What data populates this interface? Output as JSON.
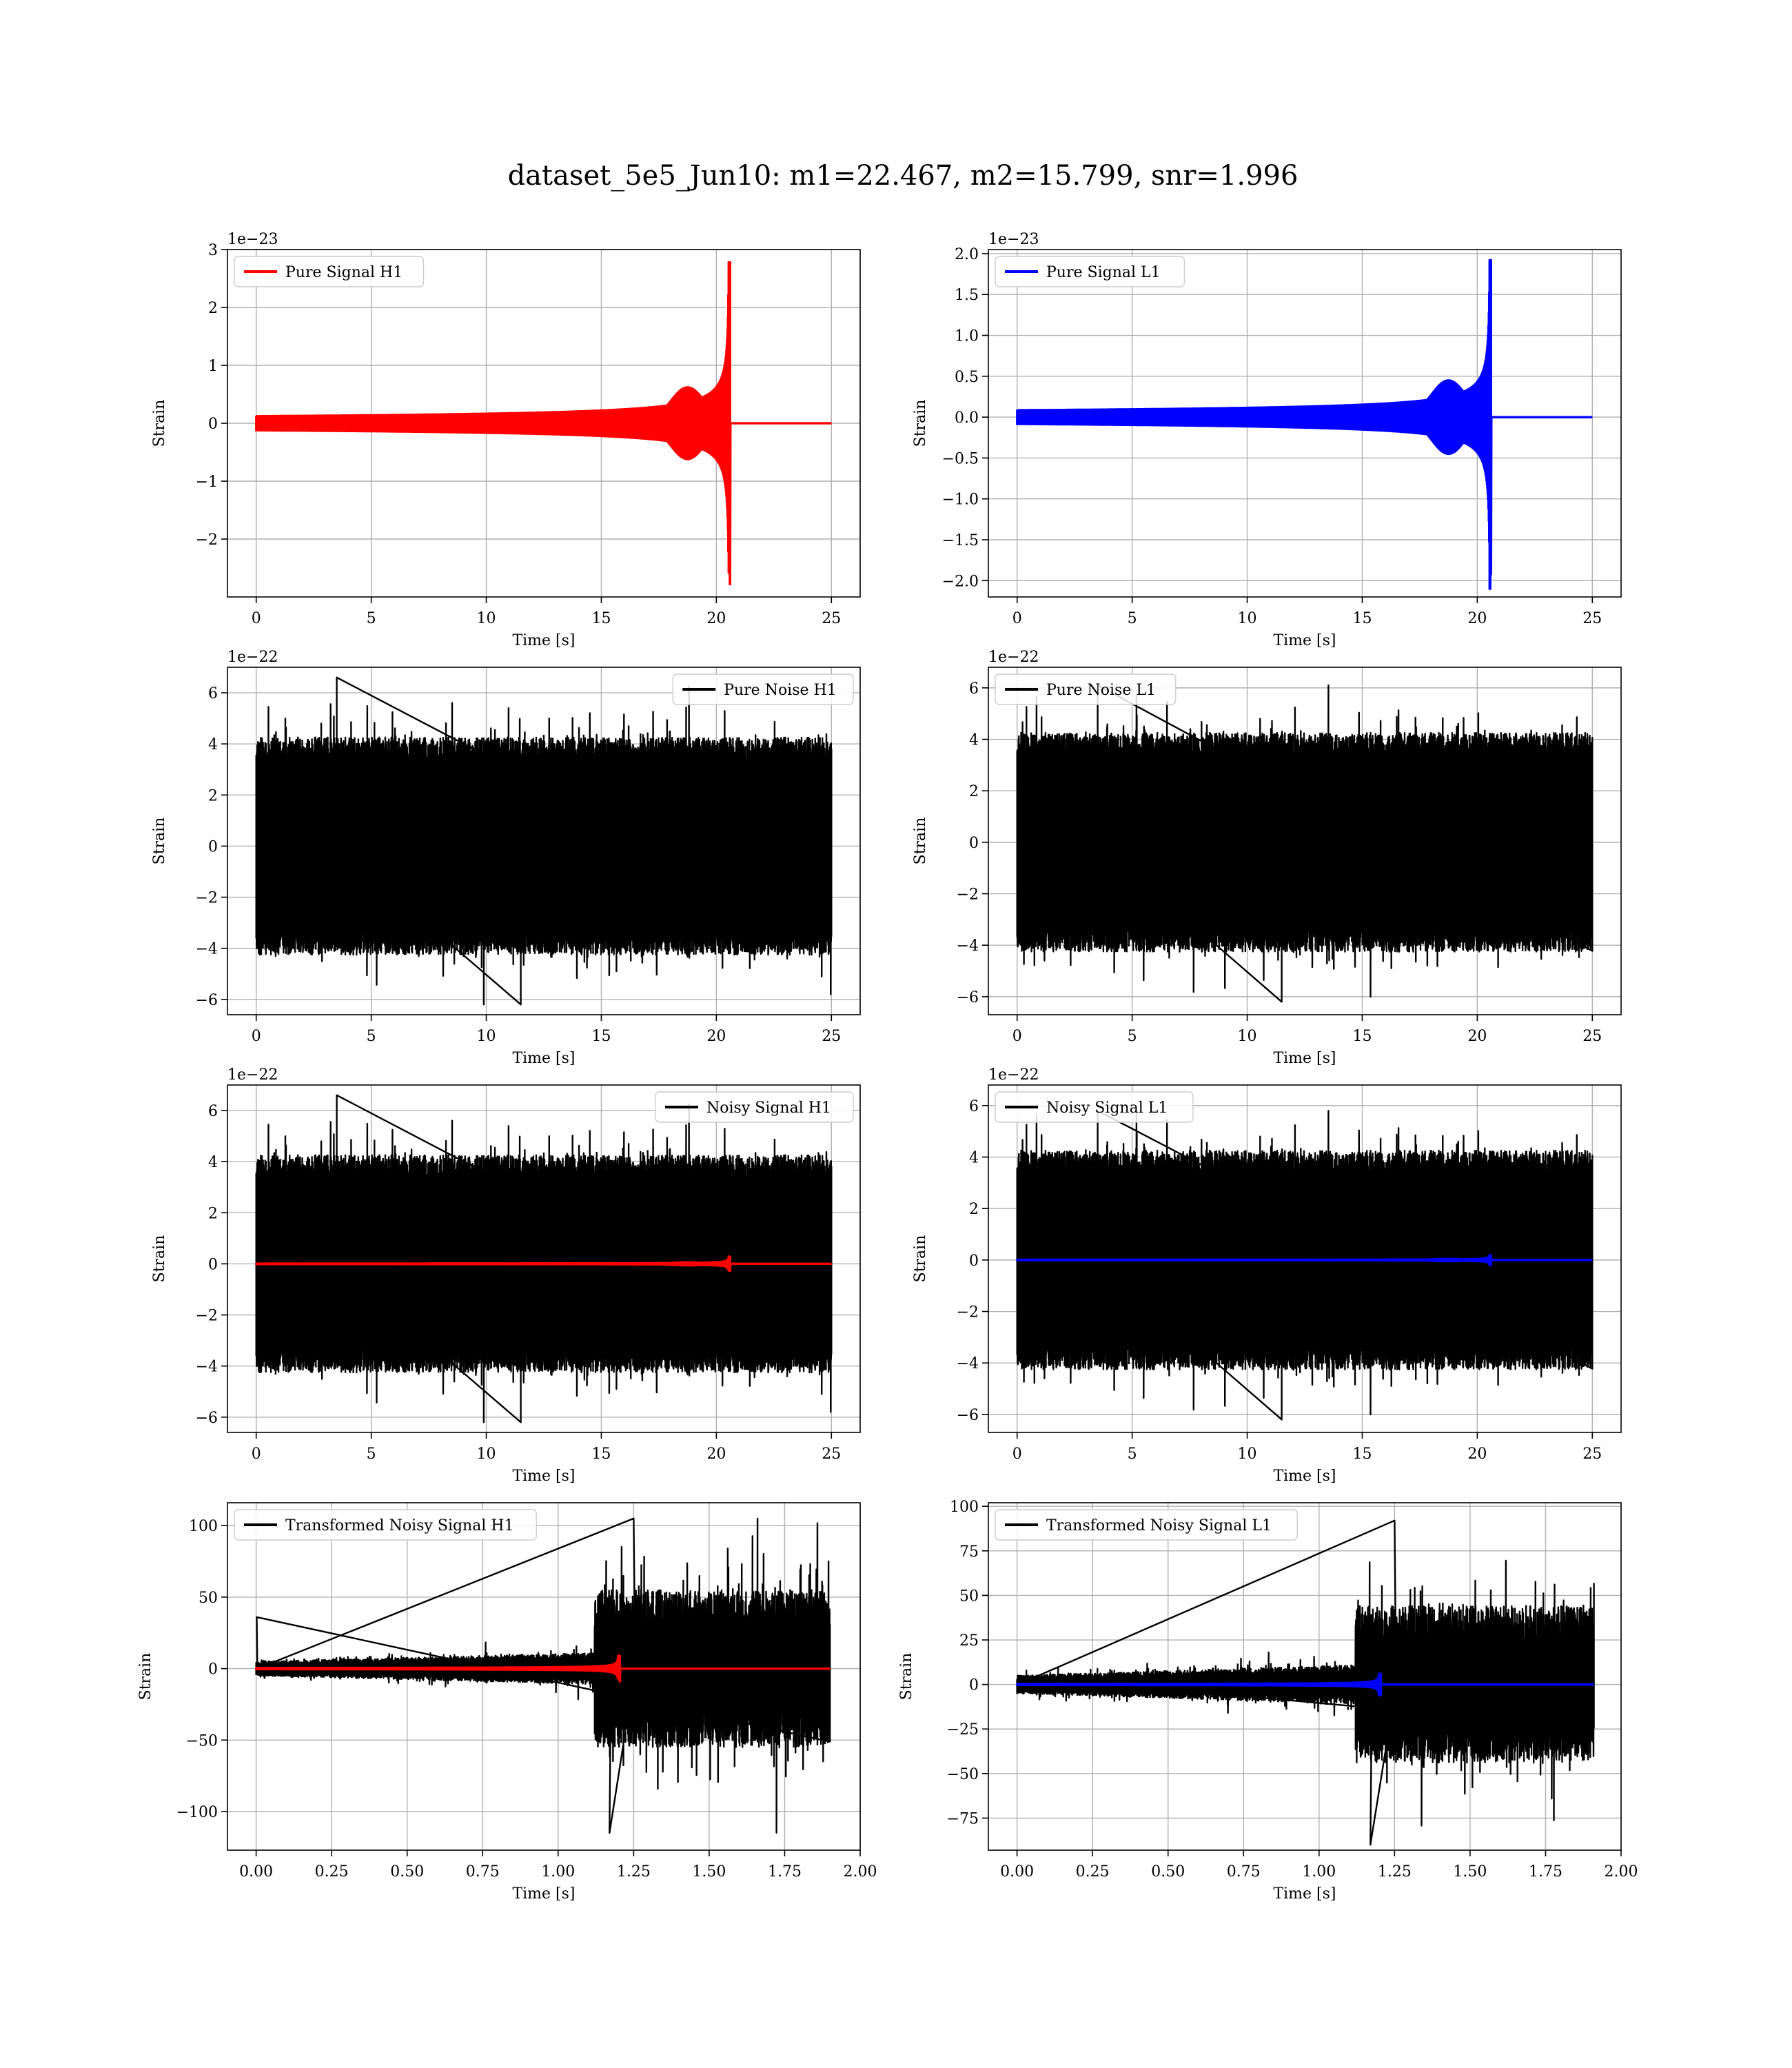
{
  "figure": {
    "title": "dataset_5e5_Jun10: m1=22.467, m2=15.799, snr=1.996"
  },
  "colors": {
    "h1_signal": "#ff0000",
    "l1_signal": "#0000ff",
    "noise": "#000000",
    "grid": "#b0b0b0"
  },
  "chart_data": [
    {
      "id": "pure-signal-h1",
      "type": "line",
      "title": "",
      "xlabel": "Time [s]",
      "ylabel": "Strain",
      "offset_text": "1e−23",
      "xlim": [
        -1.25,
        26.25
      ],
      "ylim": [
        -3.0,
        3.0
      ],
      "xticks": [
        0,
        5,
        10,
        15,
        20,
        25
      ],
      "xtick_labels": [
        "0",
        "5",
        "10",
        "15",
        "20",
        "25"
      ],
      "yticks": [
        -2,
        -1,
        0,
        1,
        2,
        3
      ],
      "ytick_labels": [
        "−2",
        "−1",
        "0",
        "1",
        "2",
        "3"
      ],
      "grid": true,
      "legend_position": "upper-left",
      "series": [
        {
          "name": "Pure Signal H1",
          "color": "#ff0000",
          "kind": "chirp",
          "t_start": 0,
          "t_end": 25,
          "merger_t": 20.55,
          "amp_peak": 2.78,
          "amp_min": -2.58,
          "amp_shoulder": 0.62
        }
      ]
    },
    {
      "id": "pure-signal-l1",
      "type": "line",
      "title": "",
      "xlabel": "Time [s]",
      "ylabel": "Strain",
      "offset_text": "1e−23",
      "xlim": [
        -1.25,
        26.25
      ],
      "ylim": [
        -2.2,
        2.05
      ],
      "xticks": [
        0,
        5,
        10,
        15,
        20,
        25
      ],
      "xtick_labels": [
        "0",
        "5",
        "10",
        "15",
        "20",
        "25"
      ],
      "yticks": [
        -2.0,
        -1.5,
        -1.0,
        -0.5,
        0.0,
        0.5,
        1.0,
        1.5,
        2.0
      ],
      "ytick_labels": [
        "−2.0",
        "−1.5",
        "−1.0",
        "−0.5",
        "0.0",
        "0.5",
        "1.0",
        "1.5",
        "2.0"
      ],
      "grid": true,
      "legend_position": "upper-left",
      "series": [
        {
          "name": "Pure Signal L1",
          "color": "#0000ff",
          "kind": "chirp",
          "t_start": 0,
          "t_end": 25,
          "merger_t": 20.55,
          "amp_peak": 1.92,
          "amp_min": -2.1,
          "amp_shoulder": 0.45
        }
      ]
    },
    {
      "id": "pure-noise-h1",
      "type": "line",
      "title": "",
      "xlabel": "Time [s]",
      "ylabel": "Strain",
      "offset_text": "1e−22",
      "xlim": [
        -1.25,
        26.25
      ],
      "ylim": [
        -6.6,
        7.0
      ],
      "xticks": [
        0,
        5,
        10,
        15,
        20,
        25
      ],
      "xtick_labels": [
        "0",
        "5",
        "10",
        "15",
        "20",
        "25"
      ],
      "yticks": [
        -6,
        -4,
        -2,
        0,
        2,
        4,
        6
      ],
      "ytick_labels": [
        "−6",
        "−4",
        "−2",
        "0",
        "2",
        "4",
        "6"
      ],
      "grid": true,
      "legend_position": "upper-right",
      "series": [
        {
          "name": "Pure Noise H1",
          "color": "#000000",
          "kind": "noise",
          "t_start": 0,
          "t_end": 25,
          "max": 6.6,
          "min": -6.2,
          "band": 3.8,
          "seed": 11
        }
      ]
    },
    {
      "id": "pure-noise-l1",
      "type": "line",
      "title": "",
      "xlabel": "Time [s]",
      "ylabel": "Strain",
      "offset_text": "1e−22",
      "xlim": [
        -1.25,
        26.25
      ],
      "ylim": [
        -6.7,
        6.8
      ],
      "xticks": [
        0,
        5,
        10,
        15,
        20,
        25
      ],
      "xtick_labels": [
        "0",
        "5",
        "10",
        "15",
        "20",
        "25"
      ],
      "yticks": [
        -6,
        -4,
        -2,
        0,
        2,
        4,
        6
      ],
      "ytick_labels": [
        "−6",
        "−4",
        "−2",
        "0",
        "2",
        "4",
        "6"
      ],
      "grid": true,
      "legend_position": "upper-left",
      "series": [
        {
          "name": "Pure Noise L1",
          "color": "#000000",
          "kind": "noise",
          "t_start": 0,
          "t_end": 25,
          "max": 6.1,
          "min": -6.2,
          "band": 3.8,
          "seed": 23
        }
      ]
    },
    {
      "id": "noisy-signal-h1",
      "type": "line",
      "title": "",
      "xlabel": "Time [s]",
      "ylabel": "Strain",
      "offset_text": "1e−22",
      "xlim": [
        -1.25,
        26.25
      ],
      "ylim": [
        -6.6,
        7.0
      ],
      "xticks": [
        0,
        5,
        10,
        15,
        20,
        25
      ],
      "xtick_labels": [
        "0",
        "5",
        "10",
        "15",
        "20",
        "25"
      ],
      "yticks": [
        -6,
        -4,
        -2,
        0,
        2,
        4,
        6
      ],
      "ytick_labels": [
        "−6",
        "−4",
        "−2",
        "0",
        "2",
        "4",
        "6"
      ],
      "grid": true,
      "legend_position": "upper-right",
      "series": [
        {
          "name": "Noisy Signal H1",
          "color": "#000000",
          "kind": "noise",
          "t_start": 0,
          "t_end": 25,
          "max": 6.6,
          "min": -6.2,
          "band": 3.8,
          "seed": 11
        },
        {
          "name": "",
          "color": "#ff0000",
          "kind": "chirp",
          "t_start": 0,
          "t_end": 25,
          "merger_t": 20.55,
          "amp_peak": 0.28,
          "amp_min": -0.26,
          "amp_shoulder": 0.06
        }
      ]
    },
    {
      "id": "noisy-signal-l1",
      "type": "line",
      "title": "",
      "xlabel": "Time [s]",
      "ylabel": "Strain",
      "offset_text": "1e−22",
      "xlim": [
        -1.25,
        26.25
      ],
      "ylim": [
        -6.7,
        6.8
      ],
      "xticks": [
        0,
        5,
        10,
        15,
        20,
        25
      ],
      "xtick_labels": [
        "0",
        "5",
        "10",
        "15",
        "20",
        "25"
      ],
      "yticks": [
        -6,
        -4,
        -2,
        0,
        2,
        4,
        6
      ],
      "ytick_labels": [
        "−6",
        "−4",
        "−2",
        "0",
        "2",
        "4",
        "6"
      ],
      "grid": true,
      "legend_position": "upper-left",
      "series": [
        {
          "name": "Noisy Signal L1",
          "color": "#000000",
          "kind": "noise",
          "t_start": 0,
          "t_end": 25,
          "max": 5.8,
          "min": -6.2,
          "band": 3.8,
          "seed": 23
        },
        {
          "name": "",
          "color": "#0000ff",
          "kind": "chirp",
          "t_start": 0,
          "t_end": 25,
          "merger_t": 20.55,
          "amp_peak": 0.19,
          "amp_min": -0.21,
          "amp_shoulder": 0.045
        }
      ]
    },
    {
      "id": "transformed-noisy-signal-h1",
      "type": "line",
      "title": "",
      "xlabel": "Time [s]",
      "ylabel": "Strain",
      "offset_text": "",
      "xlim": [
        -0.095,
        2.0
      ],
      "ylim": [
        -127,
        116
      ],
      "xticks": [
        0,
        0.25,
        0.5,
        0.75,
        1.0,
        1.25,
        1.5,
        1.75,
        2.0
      ],
      "xtick_labels": [
        "0.00",
        "0.25",
        "0.50",
        "0.75",
        "1.00",
        "1.25",
        "1.50",
        "1.75",
        "2.00"
      ],
      "yticks": [
        -100,
        -50,
        0,
        50,
        100
      ],
      "ytick_labels": [
        "−100",
        "−50",
        "0",
        "50",
        "100"
      ],
      "grid": true,
      "legend_position": "upper-left",
      "series": [
        {
          "name": "Transformed Noisy Signal H1",
          "color": "#000000",
          "kind": "whitened",
          "t_start": 0,
          "t_end": 1.9,
          "step_t": 1.12,
          "low_band": 6,
          "high_band": 50,
          "max": 105,
          "min": -115,
          "spike_t0": 36,
          "seed": 37
        },
        {
          "name": "",
          "color": "#ff0000",
          "kind": "chirp",
          "t_start": 0,
          "t_end": 1.9,
          "merger_t": 1.2,
          "amp_peak": 9,
          "amp_min": -7,
          "amp_shoulder": 1
        }
      ]
    },
    {
      "id": "transformed-noisy-signal-l1",
      "type": "line",
      "title": "",
      "xlabel": "Time [s]",
      "ylabel": "Strain",
      "offset_text": "",
      "xlim": [
        -0.095,
        2.0
      ],
      "ylim": [
        -93,
        102
      ],
      "xticks": [
        0,
        0.25,
        0.5,
        0.75,
        1.0,
        1.25,
        1.5,
        1.75,
        2.0
      ],
      "xtick_labels": [
        "0.00",
        "0.25",
        "0.50",
        "0.75",
        "1.00",
        "1.25",
        "1.50",
        "1.75",
        "2.00"
      ],
      "yticks": [
        -75,
        -50,
        -25,
        0,
        25,
        50,
        75,
        100
      ],
      "ytick_labels": [
        "−75",
        "−50",
        "−25",
        "0",
        "25",
        "50",
        "75",
        "100"
      ],
      "grid": true,
      "legend_position": "upper-left",
      "series": [
        {
          "name": "Transformed Noisy Signal L1",
          "color": "#000000",
          "kind": "whitened",
          "t_start": 0,
          "t_end": 1.91,
          "step_t": 1.12,
          "low_band": 6,
          "high_band": 40,
          "max": 92,
          "min": -90,
          "spike_t0": 5,
          "seed": 41
        },
        {
          "name": "",
          "color": "#0000ff",
          "kind": "chirp",
          "t_start": 0,
          "t_end": 1.91,
          "merger_t": 1.2,
          "amp_peak": 6,
          "amp_min": -6,
          "amp_shoulder": 0.8
        }
      ]
    }
  ]
}
